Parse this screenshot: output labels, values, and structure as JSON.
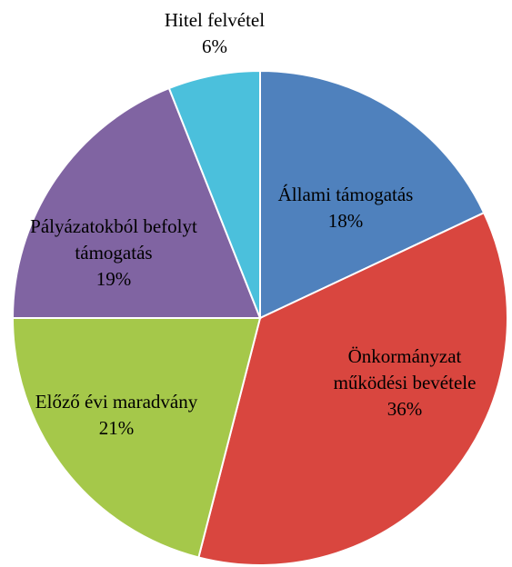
{
  "chart_data": {
    "type": "pie",
    "categories": [
      "Állami támogatás",
      "Önkormányzat működési bevétele",
      "Előző évi maradvány",
      "Pályázatokból befolyt támogatás",
      "Hitel felvétel"
    ],
    "values": [
      18,
      36,
      21,
      19,
      6
    ],
    "value_labels": [
      "18%",
      "36%",
      "21%",
      "19%",
      "6%"
    ],
    "colors": [
      "#4f81bd",
      "#d9463f",
      "#a5c84a",
      "#8064a2",
      "#4bc0dc"
    ]
  }
}
